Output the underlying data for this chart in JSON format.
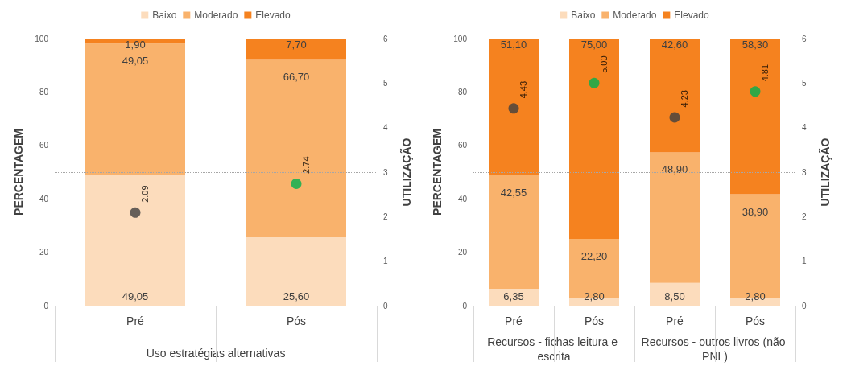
{
  "chart_data": [
    {
      "type": "bar",
      "stacked": true,
      "categories": [
        "Pré",
        "Pós"
      ],
      "xlabel": "Uso estratégias alternativas",
      "ylabel": "PERCENTAGEM",
      "y2label": "UTILIZAÇÃO",
      "ylim": [
        0,
        100
      ],
      "yticks": [
        0,
        20,
        40,
        60,
        80,
        100
      ],
      "y2lim": [
        0,
        6
      ],
      "y2ticks": [
        0,
        1,
        2,
        3,
        4,
        5,
        6
      ],
      "legend": "top",
      "grid": false,
      "series": [
        {
          "name": "Baixo",
          "color": "#fcdcbc",
          "values": [
            49.05,
            25.6
          ],
          "value_labels": [
            "49,05",
            "25,60"
          ]
        },
        {
          "name": "Moderado",
          "color": "#f9b26c",
          "values": [
            49.05,
            66.7
          ],
          "value_labels": [
            "49,05",
            "66,70"
          ]
        },
        {
          "name": "Elevado",
          "color": "#f5821f",
          "values": [
            1.9,
            7.7
          ],
          "value_labels": [
            "1,90",
            "7,70"
          ]
        },
        {
          "type": "scatter",
          "axis": "y2",
          "colors": [
            "#404040",
            "#00b050"
          ],
          "values": [
            2.09,
            2.74
          ],
          "value_labels": [
            "2.09",
            "2.74"
          ]
        }
      ],
      "ref_lines": [
        {
          "axis": "y2",
          "value": 3,
          "color": "#a6a6a6",
          "line_style": "dotted"
        }
      ],
      "marker": "circle"
    },
    {
      "type": "bar",
      "stacked": true,
      "categories": [
        "Pré",
        "Pós",
        "Pré",
        "Pós"
      ],
      "ylabel": "PERCENTAGEM",
      "y2label": "UTILIZAÇÃO",
      "ylim": [
        0,
        100
      ],
      "yticks": [
        0,
        20,
        40,
        60,
        80,
        100
      ],
      "y2lim": [
        0,
        6
      ],
      "y2ticks": [
        0,
        1,
        2,
        3,
        4,
        5,
        6
      ],
      "legend": "top",
      "grid": false,
      "annotations": [
        "Recursos - fichas leitura e escrita",
        "Recursos - outros livros (não PNL)"
      ],
      "series": [
        {
          "name": "Baixo",
          "color": "#fcdcbc",
          "values": [
            6.35,
            2.8,
            8.5,
            2.8
          ],
          "value_labels": [
            "6,35",
            "2,80",
            "8,50",
            "2,80"
          ]
        },
        {
          "name": "Moderado",
          "color": "#f9b26c",
          "values": [
            42.55,
            22.2,
            48.9,
            38.9
          ],
          "value_labels": [
            "42,55",
            "22,20",
            "48,90",
            "38,90"
          ]
        },
        {
          "name": "Elevado",
          "color": "#f5821f",
          "values": [
            51.1,
            75.0,
            42.6,
            58.3
          ],
          "value_labels": [
            "51,10",
            "75,00",
            "42,60",
            "58,30"
          ]
        },
        {
          "type": "scatter",
          "axis": "y2",
          "colors": [
            "#404040",
            "#00b050",
            "#404040",
            "#00b050"
          ],
          "values": [
            4.43,
            5.0,
            4.23,
            4.81
          ],
          "value_labels": [
            "4.43",
            "5.00",
            "4.23",
            "4.81"
          ]
        }
      ],
      "ref_lines": [
        {
          "axis": "y2",
          "value": 3,
          "color": "#a6a6a6",
          "line_style": "dotted"
        }
      ],
      "marker": "circle"
    }
  ]
}
